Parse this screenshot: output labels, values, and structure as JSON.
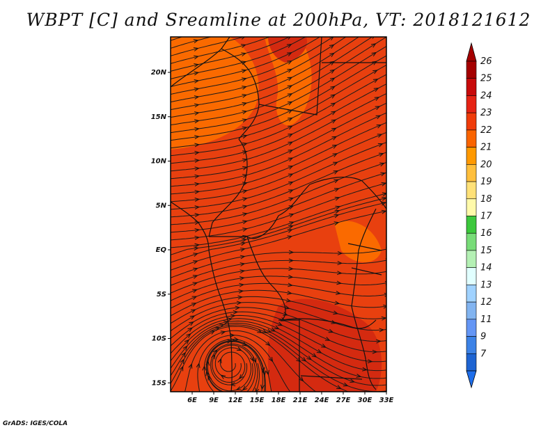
{
  "title": "WBPT [C] and Sreamline at 200hPa, VT: 2018121612",
  "footer": "GrADS: IGES/COLA",
  "map": {
    "lon_range": [
      3,
      33
    ],
    "lat_range": [
      -16,
      24
    ],
    "lat_ticks": [
      {
        "value": 20,
        "label": "20N"
      },
      {
        "value": 15,
        "label": "15N"
      },
      {
        "value": 10,
        "label": "10N"
      },
      {
        "value": 5,
        "label": "5N"
      },
      {
        "value": 0,
        "label": "EQ"
      },
      {
        "value": -5,
        "label": "5S"
      },
      {
        "value": -10,
        "label": "10S"
      },
      {
        "value": -15,
        "label": "15S"
      }
    ],
    "lon_ticks": [
      {
        "value": 6,
        "label": "6E"
      },
      {
        "value": 9,
        "label": "9E"
      },
      {
        "value": 12,
        "label": "12E"
      },
      {
        "value": 15,
        "label": "15E"
      },
      {
        "value": 18,
        "label": "18E"
      },
      {
        "value": 21,
        "label": "21E"
      },
      {
        "value": 24,
        "label": "24E"
      },
      {
        "value": 27,
        "label": "27E"
      },
      {
        "value": 30,
        "label": "30E"
      },
      {
        "value": 33,
        "label": "33E"
      }
    ]
  },
  "colorbar": {
    "levels": [
      {
        "label": "26",
        "color": "#a50000"
      },
      {
        "label": "25",
        "color": "#c80a0a"
      },
      {
        "label": "24",
        "color": "#e62314"
      },
      {
        "label": "23",
        "color": "#f03c0a"
      },
      {
        "label": "22",
        "color": "#fa6400"
      },
      {
        "label": "21",
        "color": "#ff9900"
      },
      {
        "label": "20",
        "color": "#ffbf3c"
      },
      {
        "label": "19",
        "color": "#ffe178"
      },
      {
        "label": "18",
        "color": "#fffaaa"
      },
      {
        "label": "17",
        "color": "#3cc83c"
      },
      {
        "label": "16",
        "color": "#78dc78"
      },
      {
        "label": "15",
        "color": "#b4f0b4"
      },
      {
        "label": "14",
        "color": "#e1ffff"
      },
      {
        "label": "13",
        "color": "#a0d2ff"
      },
      {
        "label": "12",
        "color": "#82b4f0"
      },
      {
        "label": "11",
        "color": "#6496f5"
      },
      {
        "label": "9",
        "color": "#3c82e6"
      },
      {
        "label": "7",
        "color": "#1e64d2"
      }
    ],
    "bottom_color": "#1e6eeb"
  },
  "fill_colors": {
    "base": "#e8400f",
    "warm": "#fa6a00",
    "hot": "#d42a10"
  }
}
